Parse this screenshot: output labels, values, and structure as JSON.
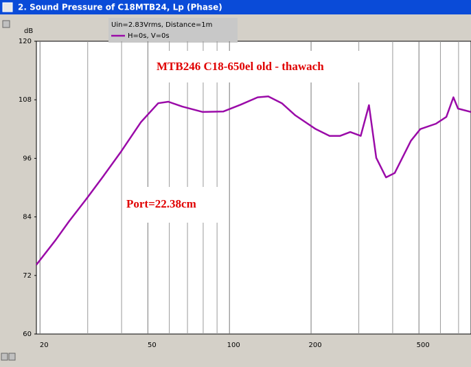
{
  "chart_data": {
    "type": "line",
    "title": "2. Sound Pressure of C18MTB24, Lp (Phase)",
    "y_label": "dB",
    "legend_note": "Uin=2.83Vrms, Distance=1m",
    "annotations": [
      "MTB246  C18-650el old - thawach",
      "Port=22.38cm"
    ],
    "x": [
      19.4,
      22.8,
      25.6,
      29.6,
      34.2,
      39.6,
      47.1,
      54.6,
      59.5,
      67,
      79.7,
      95,
      110,
      127,
      139,
      156,
      175,
      208,
      234,
      256,
      279,
      305,
      327,
      348,
      378,
      407,
      467,
      506,
      578,
      631,
      670,
      697,
      778
    ],
    "series": [
      {
        "name": "H=0s, V=0s",
        "color": "#9a0aa8",
        "values": [
          74.2,
          79.2,
          83.1,
          87.6,
          92.3,
          97.2,
          103.4,
          107.3,
          107.6,
          106.6,
          105.5,
          105.6,
          107,
          108.5,
          108.7,
          107.3,
          104.8,
          102,
          100.6,
          100.6,
          101.4,
          100.6,
          106.9,
          96.1,
          92.1,
          93,
          99.6,
          102,
          103.1,
          104.5,
          108.5,
          106.2,
          105.5
        ]
      }
    ],
    "x_log": true,
    "xlim": [
      19.4,
      778
    ],
    "xticks": [
      20,
      50,
      100,
      200,
      500
    ],
    "x_minor_ticks": [
      30,
      40,
      60,
      70,
      80,
      90,
      300,
      400,
      600,
      700
    ],
    "ylim": [
      60,
      120
    ],
    "yticks": [
      60,
      72,
      84,
      96,
      108,
      120
    ],
    "grid_x": true
  }
}
